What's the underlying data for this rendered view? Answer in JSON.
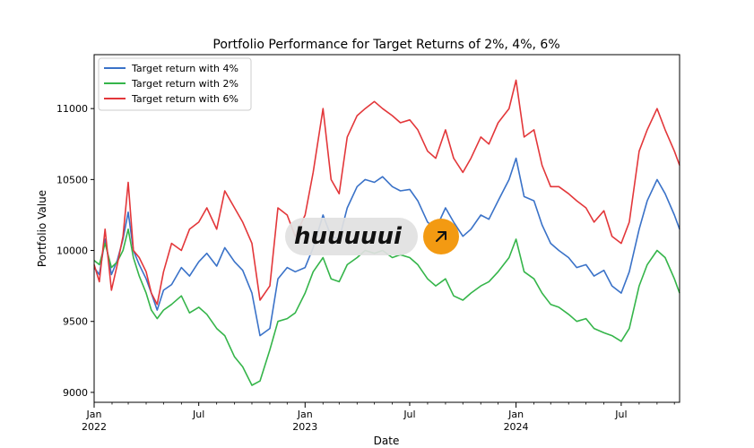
{
  "chart_data": {
    "type": "line",
    "title": "Portfolio Performance for Target Returns of 2%, 4%, 6%",
    "xlabel": "Date",
    "ylabel": "Portfolio Value",
    "xlim": [
      "2022-01-01",
      "2024-10-10"
    ],
    "ylim": [
      8930,
      11380
    ],
    "yticks": [
      9000,
      9500,
      10000,
      10500,
      11000
    ],
    "xticks": [
      {
        "date": "2022-01-01",
        "label": "Jan",
        "sublabel": "2022"
      },
      {
        "date": "2022-07-01",
        "label": "Jul",
        "sublabel": ""
      },
      {
        "date": "2023-01-01",
        "label": "Jan",
        "sublabel": "2023"
      },
      {
        "date": "2023-07-01",
        "label": "Jul",
        "sublabel": ""
      },
      {
        "date": "2024-01-01",
        "label": "Jan",
        "sublabel": "2024"
      },
      {
        "date": "2024-07-01",
        "label": "Jul",
        "sublabel": ""
      }
    ],
    "grid": false,
    "legend_position": "top-left",
    "series": [
      {
        "name": "Target return with 4%",
        "color": "#3a72c8",
        "points": [
          [
            "2022-01-01",
            9880
          ],
          [
            "2022-01-10",
            9830
          ],
          [
            "2022-01-20",
            10080
          ],
          [
            "2022-01-31",
            9830
          ],
          [
            "2022-02-10",
            9930
          ],
          [
            "2022-02-20",
            10080
          ],
          [
            "2022-03-01",
            10270
          ],
          [
            "2022-03-10",
            10000
          ],
          [
            "2022-03-20",
            9900
          ],
          [
            "2022-04-01",
            9800
          ],
          [
            "2022-04-10",
            9700
          ],
          [
            "2022-04-20",
            9580
          ],
          [
            "2022-05-01",
            9720
          ],
          [
            "2022-05-15",
            9760
          ],
          [
            "2022-06-01",
            9880
          ],
          [
            "2022-06-15",
            9820
          ],
          [
            "2022-07-01",
            9920
          ],
          [
            "2022-07-15",
            9980
          ],
          [
            "2022-08-01",
            9890
          ],
          [
            "2022-08-15",
            10020
          ],
          [
            "2022-09-01",
            9920
          ],
          [
            "2022-09-15",
            9860
          ],
          [
            "2022-10-01",
            9700
          ],
          [
            "2022-10-15",
            9400
          ],
          [
            "2022-11-01",
            9450
          ],
          [
            "2022-11-15",
            9800
          ],
          [
            "2022-12-01",
            9880
          ],
          [
            "2022-12-15",
            9850
          ],
          [
            "2023-01-01",
            9880
          ],
          [
            "2023-01-15",
            10020
          ],
          [
            "2023-02-01",
            10250
          ],
          [
            "2023-02-15",
            10100
          ],
          [
            "2023-03-01",
            10080
          ],
          [
            "2023-03-15",
            10300
          ],
          [
            "2023-04-01",
            10450
          ],
          [
            "2023-04-15",
            10500
          ],
          [
            "2023-05-01",
            10480
          ],
          [
            "2023-05-15",
            10520
          ],
          [
            "2023-06-01",
            10450
          ],
          [
            "2023-06-15",
            10420
          ],
          [
            "2023-07-01",
            10430
          ],
          [
            "2023-07-15",
            10350
          ],
          [
            "2023-08-01",
            10200
          ],
          [
            "2023-08-15",
            10150
          ],
          [
            "2023-09-01",
            10300
          ],
          [
            "2023-09-15",
            10200
          ],
          [
            "2023-10-01",
            10100
          ],
          [
            "2023-10-15",
            10150
          ],
          [
            "2023-11-01",
            10250
          ],
          [
            "2023-11-15",
            10220
          ],
          [
            "2023-12-01",
            10350
          ],
          [
            "2023-12-20",
            10500
          ],
          [
            "2024-01-01",
            10650
          ],
          [
            "2024-01-15",
            10380
          ],
          [
            "2024-02-01",
            10350
          ],
          [
            "2024-02-15",
            10180
          ],
          [
            "2024-03-01",
            10050
          ],
          [
            "2024-03-15",
            10000
          ],
          [
            "2024-04-01",
            9950
          ],
          [
            "2024-04-15",
            9880
          ],
          [
            "2024-05-01",
            9900
          ],
          [
            "2024-05-15",
            9820
          ],
          [
            "2024-06-01",
            9860
          ],
          [
            "2024-06-15",
            9750
          ],
          [
            "2024-07-01",
            9700
          ],
          [
            "2024-07-15",
            9850
          ],
          [
            "2024-08-01",
            10150
          ],
          [
            "2024-08-15",
            10350
          ],
          [
            "2024-09-01",
            10500
          ],
          [
            "2024-09-15",
            10400
          ],
          [
            "2024-10-01",
            10250
          ],
          [
            "2024-10-10",
            10150
          ]
        ]
      },
      {
        "name": "Target return with 2%",
        "color": "#35b54a",
        "points": [
          [
            "2022-01-01",
            9930
          ],
          [
            "2022-01-10",
            9900
          ],
          [
            "2022-01-20",
            10050
          ],
          [
            "2022-01-31",
            9880
          ],
          [
            "2022-02-10",
            9920
          ],
          [
            "2022-02-20",
            10000
          ],
          [
            "2022-03-01",
            10150
          ],
          [
            "2022-03-10",
            9950
          ],
          [
            "2022-03-20",
            9820
          ],
          [
            "2022-04-01",
            9700
          ],
          [
            "2022-04-10",
            9580
          ],
          [
            "2022-04-20",
            9520
          ],
          [
            "2022-05-01",
            9580
          ],
          [
            "2022-05-15",
            9620
          ],
          [
            "2022-06-01",
            9680
          ],
          [
            "2022-06-15",
            9560
          ],
          [
            "2022-07-01",
            9600
          ],
          [
            "2022-07-15",
            9550
          ],
          [
            "2022-08-01",
            9450
          ],
          [
            "2022-08-15",
            9400
          ],
          [
            "2022-09-01",
            9250
          ],
          [
            "2022-09-15",
            9180
          ],
          [
            "2022-10-01",
            9050
          ],
          [
            "2022-10-15",
            9080
          ],
          [
            "2022-11-01",
            9300
          ],
          [
            "2022-11-15",
            9500
          ],
          [
            "2022-12-01",
            9520
          ],
          [
            "2022-12-15",
            9560
          ],
          [
            "2023-01-01",
            9700
          ],
          [
            "2023-01-15",
            9850
          ],
          [
            "2023-02-01",
            9950
          ],
          [
            "2023-02-15",
            9800
          ],
          [
            "2023-03-01",
            9780
          ],
          [
            "2023-03-15",
            9900
          ],
          [
            "2023-04-01",
            9950
          ],
          [
            "2023-04-15",
            10000
          ],
          [
            "2023-05-01",
            9980
          ],
          [
            "2023-05-15",
            10000
          ],
          [
            "2023-06-01",
            9950
          ],
          [
            "2023-06-15",
            9970
          ],
          [
            "2023-07-01",
            9950
          ],
          [
            "2023-07-15",
            9900
          ],
          [
            "2023-08-01",
            9800
          ],
          [
            "2023-08-15",
            9750
          ],
          [
            "2023-09-01",
            9800
          ],
          [
            "2023-09-15",
            9680
          ],
          [
            "2023-10-01",
            9650
          ],
          [
            "2023-10-15",
            9700
          ],
          [
            "2023-11-01",
            9750
          ],
          [
            "2023-11-15",
            9780
          ],
          [
            "2023-12-01",
            9850
          ],
          [
            "2023-12-20",
            9950
          ],
          [
            "2024-01-01",
            10080
          ],
          [
            "2024-01-15",
            9850
          ],
          [
            "2024-02-01",
            9800
          ],
          [
            "2024-02-15",
            9700
          ],
          [
            "2024-03-01",
            9620
          ],
          [
            "2024-03-15",
            9600
          ],
          [
            "2024-04-01",
            9550
          ],
          [
            "2024-04-15",
            9500
          ],
          [
            "2024-05-01",
            9520
          ],
          [
            "2024-05-15",
            9450
          ],
          [
            "2024-06-01",
            9420
          ],
          [
            "2024-06-15",
            9400
          ],
          [
            "2024-07-01",
            9360
          ],
          [
            "2024-07-15",
            9450
          ],
          [
            "2024-08-01",
            9750
          ],
          [
            "2024-08-15",
            9900
          ],
          [
            "2024-09-01",
            10000
          ],
          [
            "2024-09-15",
            9950
          ],
          [
            "2024-10-01",
            9800
          ],
          [
            "2024-10-10",
            9700
          ]
        ]
      },
      {
        "name": "Target return with 6%",
        "color": "#e3373a",
        "points": [
          [
            "2022-01-01",
            9900
          ],
          [
            "2022-01-10",
            9780
          ],
          [
            "2022-01-20",
            10150
          ],
          [
            "2022-01-31",
            9720
          ],
          [
            "2022-02-10",
            9900
          ],
          [
            "2022-02-20",
            10100
          ],
          [
            "2022-03-01",
            10480
          ],
          [
            "2022-03-10",
            10000
          ],
          [
            "2022-03-20",
            9950
          ],
          [
            "2022-04-01",
            9850
          ],
          [
            "2022-04-10",
            9700
          ],
          [
            "2022-04-20",
            9620
          ],
          [
            "2022-05-01",
            9850
          ],
          [
            "2022-05-15",
            10050
          ],
          [
            "2022-06-01",
            10000
          ],
          [
            "2022-06-15",
            10150
          ],
          [
            "2022-07-01",
            10200
          ],
          [
            "2022-07-15",
            10300
          ],
          [
            "2022-08-01",
            10150
          ],
          [
            "2022-08-15",
            10420
          ],
          [
            "2022-09-01",
            10300
          ],
          [
            "2022-09-15",
            10200
          ],
          [
            "2022-10-01",
            10050
          ],
          [
            "2022-10-15",
            9650
          ],
          [
            "2022-11-01",
            9750
          ],
          [
            "2022-11-15",
            10300
          ],
          [
            "2022-12-01",
            10250
          ],
          [
            "2022-12-15",
            10100
          ],
          [
            "2023-01-01",
            10250
          ],
          [
            "2023-01-15",
            10550
          ],
          [
            "2023-02-01",
            11000
          ],
          [
            "2023-02-15",
            10500
          ],
          [
            "2023-03-01",
            10400
          ],
          [
            "2023-03-15",
            10800
          ],
          [
            "2023-04-01",
            10950
          ],
          [
            "2023-04-15",
            11000
          ],
          [
            "2023-05-01",
            11050
          ],
          [
            "2023-05-15",
            11000
          ],
          [
            "2023-06-01",
            10950
          ],
          [
            "2023-06-15",
            10900
          ],
          [
            "2023-07-01",
            10920
          ],
          [
            "2023-07-15",
            10850
          ],
          [
            "2023-08-01",
            10700
          ],
          [
            "2023-08-15",
            10650
          ],
          [
            "2023-09-01",
            10850
          ],
          [
            "2023-09-15",
            10650
          ],
          [
            "2023-10-01",
            10550
          ],
          [
            "2023-10-15",
            10650
          ],
          [
            "2023-11-01",
            10800
          ],
          [
            "2023-11-15",
            10750
          ],
          [
            "2023-12-01",
            10900
          ],
          [
            "2023-12-20",
            11000
          ],
          [
            "2024-01-01",
            11200
          ],
          [
            "2024-01-15",
            10800
          ],
          [
            "2024-02-01",
            10850
          ],
          [
            "2024-02-15",
            10600
          ],
          [
            "2024-03-01",
            10450
          ],
          [
            "2024-03-15",
            10450
          ],
          [
            "2024-04-01",
            10400
          ],
          [
            "2024-04-15",
            10350
          ],
          [
            "2024-05-01",
            10300
          ],
          [
            "2024-05-15",
            10200
          ],
          [
            "2024-06-01",
            10280
          ],
          [
            "2024-06-15",
            10100
          ],
          [
            "2024-07-01",
            10050
          ],
          [
            "2024-07-15",
            10200
          ],
          [
            "2024-08-01",
            10700
          ],
          [
            "2024-08-15",
            10850
          ],
          [
            "2024-09-01",
            11000
          ],
          [
            "2024-09-15",
            10850
          ],
          [
            "2024-10-01",
            10700
          ],
          [
            "2024-10-10",
            10600
          ]
        ]
      }
    ]
  },
  "watermark": {
    "text": "huuuuui",
    "icon": "arrow-up-right-icon",
    "badge_color": "#f39a12"
  }
}
